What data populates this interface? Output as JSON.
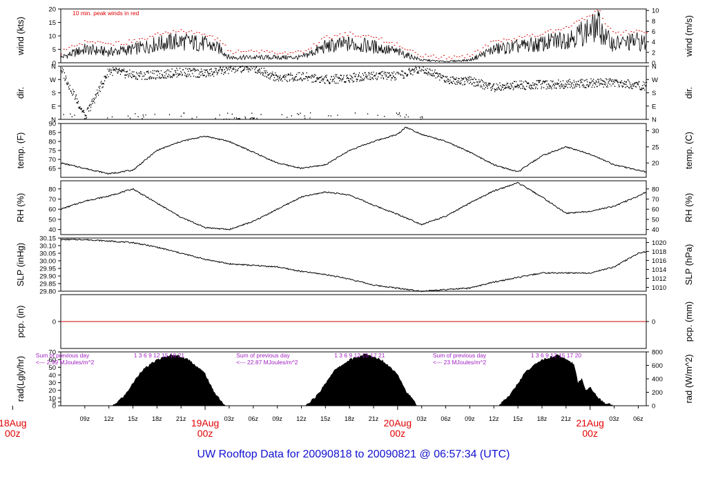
{
  "title": "UW Rooftop Data for 20090818  to  20090821 @ 06:57:34  (UTC)",
  "time_axis": {
    "range_hours_since_18Aug_00z": [
      6.0,
      79.0
    ],
    "hour_ticks": [
      {
        "h": 9,
        "label": "09z"
      },
      {
        "h": 12,
        "label": "12z"
      },
      {
        "h": 15,
        "label": "15z"
      },
      {
        "h": 18,
        "label": "18z"
      },
      {
        "h": 21,
        "label": "21z"
      },
      {
        "h": 27,
        "label": "03z"
      },
      {
        "h": 30,
        "label": "06z"
      },
      {
        "h": 33,
        "label": "09z"
      },
      {
        "h": 36,
        "label": "12z"
      },
      {
        "h": 39,
        "label": "15z"
      },
      {
        "h": 42,
        "label": "18z"
      },
      {
        "h": 45,
        "label": "21z"
      },
      {
        "h": 51,
        "label": "03z"
      },
      {
        "h": 54,
        "label": "06z"
      },
      {
        "h": 57,
        "label": "09z"
      },
      {
        "h": 60,
        "label": "12z"
      },
      {
        "h": 63,
        "label": "15z"
      },
      {
        "h": 66,
        "label": "18z"
      },
      {
        "h": 69,
        "label": "21z"
      },
      {
        "h": 75,
        "label": "03z"
      },
      {
        "h": 78,
        "label": "06z"
      }
    ],
    "day_labels": [
      {
        "h": 0,
        "date": "18Aug",
        "z": "00z"
      },
      {
        "h": 24,
        "date": "19Aug",
        "z": "00z"
      },
      {
        "h": 48,
        "date": "20Aug",
        "z": "00z"
      },
      {
        "h": 72,
        "date": "21Aug",
        "z": "00z"
      }
    ]
  },
  "chart_data": [
    {
      "type": "line",
      "id": "wind",
      "ylabel_left": "wind (kts)",
      "ylabel_right": "wind (m/s)",
      "ylim": [
        0,
        20
      ],
      "ticks_left": [
        0,
        5,
        10,
        15,
        20
      ],
      "ticks_right": [
        0,
        2,
        4,
        6,
        8,
        10
      ],
      "annotation": "10 min. peak winds in red",
      "series": [
        {
          "x": [
            6,
            9,
            12,
            15,
            18,
            21,
            24,
            26,
            27,
            30,
            33,
            36,
            39,
            42,
            45,
            48,
            50,
            51,
            54,
            57,
            60,
            63,
            66,
            69,
            72,
            73,
            74,
            75,
            78,
            79
          ],
          "y": [
            2,
            5,
            4,
            5,
            7,
            8,
            7,
            5,
            2,
            2,
            2,
            2,
            6,
            7,
            6,
            4,
            2,
            1,
            0.5,
            1,
            5,
            6,
            7,
            9,
            12,
            14,
            9,
            7,
            8,
            7
          ]
        }
      ]
    },
    {
      "type": "scatter",
      "id": "dir",
      "ylabel_left": "dir.",
      "ylabel_right": "dir.",
      "tick_labels": [
        "N",
        "W",
        "S",
        "E",
        "N"
      ],
      "ylim": [
        0,
        360
      ],
      "series": [
        {
          "x": [
            6,
            9,
            12,
            15,
            18,
            21,
            24,
            27,
            30,
            33,
            36,
            39,
            42,
            45,
            48,
            51,
            54,
            57,
            60,
            63,
            66,
            69,
            72,
            75,
            78,
            79
          ],
          "y": [
            340,
            20,
            330,
            300,
            300,
            320,
            310,
            340,
            350,
            280,
            290,
            270,
            280,
            300,
            290,
            350,
            270,
            260,
            215,
            230,
            235,
            240,
            245,
            250,
            230,
            225
          ]
        }
      ]
    },
    {
      "type": "line",
      "id": "temp",
      "ylabel_left": "temp. (F)",
      "ylabel_right": "temp. (C)",
      "ylim": [
        60,
        90
      ],
      "ticks_left": [
        65,
        70,
        75,
        80,
        85,
        90
      ],
      "ticks_right": [
        20,
        25,
        30
      ],
      "series": [
        {
          "x": [
            6,
            9,
            12,
            15,
            18,
            21,
            24,
            27,
            30,
            33,
            36,
            39,
            42,
            45,
            48,
            49,
            51,
            54,
            57,
            60,
            63,
            66,
            69,
            72,
            75,
            78,
            79
          ],
          "y": [
            68,
            65,
            62,
            64,
            75,
            80,
            83,
            80,
            74,
            68,
            65,
            67,
            75,
            80,
            84,
            88,
            84,
            80,
            74,
            67,
            63,
            72,
            77,
            73,
            67,
            64,
            63
          ]
        }
      ]
    },
    {
      "type": "line",
      "id": "rh",
      "ylabel_left": "RH (%)",
      "ylabel_right": "RH (%)",
      "ylim": [
        35,
        88
      ],
      "ticks_left": [
        40,
        50,
        60,
        70,
        80
      ],
      "ticks_right": [
        40,
        50,
        60,
        70,
        80
      ],
      "series": [
        {
          "x": [
            6,
            9,
            12,
            15,
            18,
            21,
            24,
            27,
            30,
            33,
            36,
            39,
            42,
            45,
            48,
            51,
            54,
            57,
            60,
            63,
            66,
            69,
            72,
            75,
            78,
            79
          ],
          "y": [
            60,
            68,
            73,
            80,
            66,
            52,
            42,
            40,
            48,
            60,
            72,
            77,
            74,
            64,
            55,
            45,
            53,
            66,
            78,
            86,
            72,
            56,
            58,
            63,
            73,
            77
          ]
        }
      ]
    },
    {
      "type": "line",
      "id": "slp",
      "ylabel_left": "SLP (inHg)",
      "ylabel_right": "SLP (hPa)",
      "ylim": [
        29.8,
        30.15
      ],
      "ticks_left": [
        29.8,
        29.85,
        29.9,
        29.95,
        30.0,
        30.05,
        30.1,
        30.15
      ],
      "ticks_right": [
        1010,
        1012,
        1014,
        1016,
        1018,
        1020
      ],
      "series": [
        {
          "x": [
            6,
            9,
            12,
            15,
            18,
            21,
            24,
            27,
            30,
            33,
            36,
            39,
            42,
            45,
            48,
            51,
            54,
            57,
            60,
            63,
            66,
            69,
            72,
            75,
            78,
            79
          ],
          "y": [
            30.14,
            30.14,
            30.13,
            30.12,
            30.09,
            30.05,
            30.01,
            29.98,
            29.97,
            29.96,
            29.93,
            29.91,
            29.88,
            29.84,
            29.82,
            29.8,
            29.81,
            29.82,
            29.86,
            29.89,
            29.92,
            29.92,
            29.92,
            29.96,
            30.05,
            30.06
          ]
        }
      ]
    },
    {
      "type": "line",
      "id": "pcp",
      "ylabel_left": "pcp. (in)",
      "ylabel_right": "pcp. (mm)",
      "ylim": [
        -1,
        1
      ],
      "ticks_left": [
        0
      ],
      "ticks_right": [
        0
      ],
      "series": [
        {
          "x": [
            6,
            79
          ],
          "y": [
            0,
            0
          ],
          "color": "#cc0000"
        }
      ]
    },
    {
      "type": "area",
      "id": "rad",
      "ylabel_left": "rad(Lgly/hr)",
      "ylabel_right": "rad (W/m^2)",
      "ylim": [
        0,
        70
      ],
      "ticks_left": [
        0,
        5,
        10,
        20,
        30,
        40,
        50,
        60,
        70
      ],
      "ticks_right": [
        0,
        200,
        400,
        600,
        800
      ],
      "series": [
        {
          "x": [
            12.5,
            14,
            16,
            18,
            20,
            22,
            24,
            25,
            26.5,
            36.5,
            38,
            40,
            42,
            44,
            46,
            48,
            49,
            50.5,
            60.5,
            62,
            64,
            66,
            68,
            70,
            70.5,
            71,
            71.5,
            72,
            73,
            74,
            75
          ],
          "y": [
            0,
            14,
            45,
            60,
            67,
            60,
            42,
            20,
            0,
            0,
            14,
            45,
            60,
            67,
            60,
            42,
            20,
            0,
            0,
            14,
            45,
            60,
            66,
            55,
            30,
            35,
            20,
            25,
            10,
            3,
            0
          ]
        }
      ],
      "daily_notes": [
        {
          "h": 6.5,
          "line1": "Sum of previous day",
          "line2": "<--- 2.99 MJoules/m^2",
          "hours": "1 3 6 9 12 15 18 21"
        },
        {
          "h": 31.5,
          "line1": "Sum of previous day",
          "line2": "<--- 22.87 MJoules/m^2",
          "hours": "1 3 6 9 12 15 17 21"
        },
        {
          "h": 56,
          "line1": "Sum of previous day",
          "line2": "<--- 23 MJoules/m^2",
          "hours": "1 3 6 9 12 15 17 20"
        }
      ]
    }
  ]
}
